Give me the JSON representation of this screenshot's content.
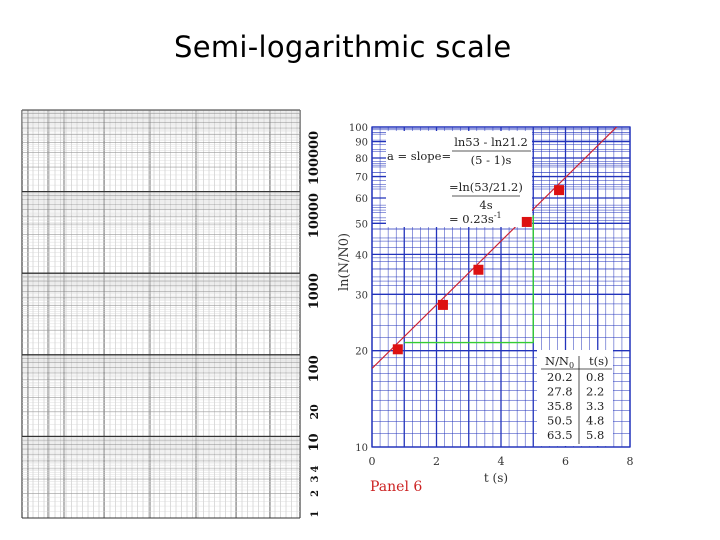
{
  "slide": {
    "title": "Semi-logarithmic scale"
  },
  "semilog_paper": {
    "scale_labels": [
      "1",
      "2",
      "3",
      "4",
      "10",
      "20",
      "100",
      "1000",
      "10000",
      "100000"
    ]
  },
  "chart_data": {
    "type": "scatter",
    "title": "",
    "xlabel": "t (s)",
    "ylabel": "ln(N/N0)",
    "y_scale": "log",
    "xlim": [
      0,
      8
    ],
    "ylim": [
      10,
      100
    ],
    "x_ticks": [
      "0",
      "2",
      "4",
      "6",
      "8"
    ],
    "y_ticks": [
      "10",
      "20",
      "30",
      "40",
      "50",
      "60",
      "70",
      "80",
      "90",
      "100"
    ],
    "grid": true,
    "panel_label": "Panel 6",
    "series": [
      {
        "x": [
          0.8,
          2.2,
          3.3,
          4.8,
          5.8
        ],
        "y": [
          20.2,
          27.8,
          35.8,
          50.5,
          63.5
        ]
      }
    ],
    "fit_line": {
      "slope": 0.23,
      "from": [
        0,
        17.6
      ],
      "to": [
        8,
        110
      ]
    },
    "guide_points": [
      [
        1,
        21.2
      ],
      [
        5,
        53
      ]
    ],
    "annotation": {
      "line1_left": "a = slope=",
      "numerator1": "ln53 - ln21.2",
      "denominator1": "(5 - 1)s",
      "numerator2": "=ln(53/21.2)",
      "denominator2": "4s",
      "result": "= 0.23s",
      "result_sup": "-1"
    },
    "table": {
      "headers": [
        "N/N",
        "t(s)"
      ],
      "header_sub": "0",
      "rows": [
        [
          "20.2",
          "0.8"
        ],
        [
          "27.8",
          "2.2"
        ],
        [
          "35.8",
          "3.3"
        ],
        [
          "50.5",
          "4.8"
        ],
        [
          "63.5",
          "5.8"
        ]
      ]
    },
    "colors": {
      "grid": "#2233bb",
      "point": "#dd1111",
      "fit_line": "#cc2233",
      "guide": "#33cc33",
      "panel_label": "#cc2222",
      "tick_text": "#333333"
    }
  }
}
